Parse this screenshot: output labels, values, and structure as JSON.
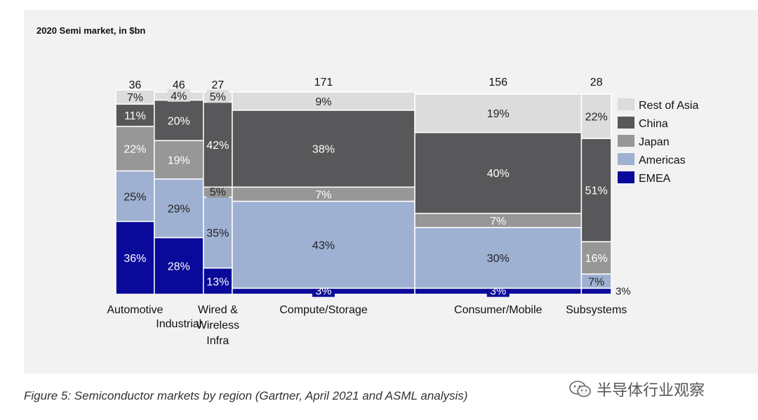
{
  "chart_data": {
    "type": "bar",
    "subtype": "marimekko-stacked-percent",
    "title": "2020 Semi market, in $bn",
    "xlabel": "",
    "ylabel": "",
    "grid": false,
    "legend_position": "right",
    "categories": [
      "Automotive",
      "Industrial",
      "Wired & Wireless Infra",
      "Compute/Storage",
      "Consumer/Mobile",
      "Subsystems"
    ],
    "category_label_lines": [
      [
        "Automotive"
      ],
      [
        "Industrial"
      ],
      [
        "Wired &",
        "Wireless",
        "Infra"
      ],
      [
        "Compute/Storage"
      ],
      [
        "Consumer/Mobile"
      ],
      [
        "Subsystems"
      ]
    ],
    "market_size_labels": [
      "36",
      "46",
      "27",
      "171",
      "156",
      "28"
    ],
    "series": [
      {
        "name": "EMEA",
        "color": "#0a0a9a",
        "values": [
          36,
          28,
          13,
          3,
          3,
          3
        ],
        "labels": [
          "36%",
          "28%",
          "13%",
          "3%",
          "3%",
          "3%"
        ]
      },
      {
        "name": "Americas",
        "color": "#9fb1d2",
        "values": [
          25,
          29,
          35,
          43,
          30,
          7
        ],
        "labels": [
          "25%",
          "29%",
          "35%",
          "43%",
          "30%",
          "7%"
        ]
      },
      {
        "name": "Japan",
        "color": "#979797",
        "values": [
          22,
          19,
          5,
          7,
          7,
          16
        ],
        "labels": [
          "22%",
          "19%",
          "5%",
          "7%",
          "7%",
          "16%"
        ]
      },
      {
        "name": "China",
        "color": "#58585a",
        "values": [
          11,
          20,
          42,
          38,
          40,
          51
        ],
        "labels": [
          "11%",
          "20%",
          "42%",
          "38%",
          "40%",
          "51%"
        ]
      },
      {
        "name": "Rest of Asia",
        "color": "#dcdcdc",
        "values": [
          7,
          4,
          5,
          9,
          19,
          22
        ],
        "labels": [
          "7%",
          "4%",
          "5%",
          "9%",
          "19%",
          "22%"
        ]
      }
    ],
    "legend_order": [
      "Rest of Asia",
      "China",
      "Japan",
      "Americas",
      "EMEA"
    ]
  },
  "caption": "Figure 5: Semiconductor markets by region (Gartner, April 2021 and ASML analysis)",
  "watermark": {
    "text": "半导体行业观察",
    "icon": "wechat-icon"
  }
}
